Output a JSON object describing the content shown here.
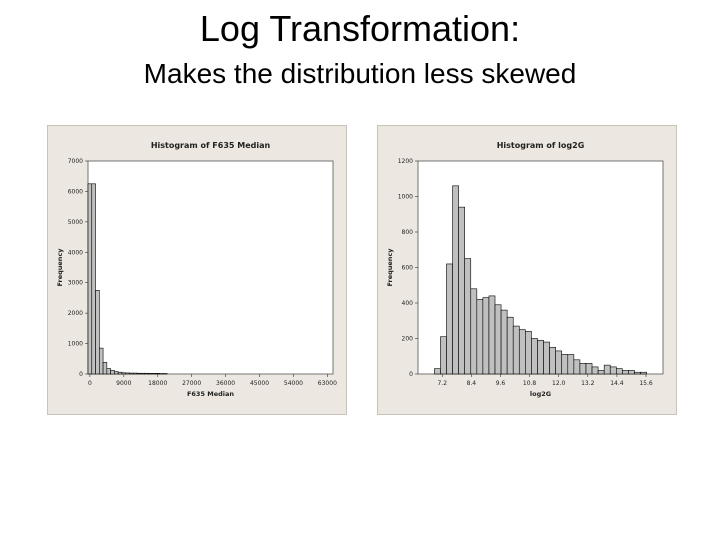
{
  "slide": {
    "title": "Log Transformation:",
    "subtitle": "Makes the distribution less skewed"
  },
  "colors": {
    "panel_bg": "#ece8e1",
    "plot_bg": "#ffffff",
    "bar_fill": "#c0c0c0",
    "bar_stroke": "#000000"
  },
  "chart_data": [
    {
      "type": "bar",
      "title": "Histogram of F635 Median",
      "xlabel": "F635 Median",
      "ylabel": "Frequency",
      "ylim": [
        0,
        7000
      ],
      "xlim": [
        -500,
        64500
      ],
      "yticks": [
        0,
        1000,
        2000,
        3000,
        4000,
        5000,
        6000,
        7000
      ],
      "yticklabels": [
        "0",
        "1000",
        "2000",
        "3000",
        "4000",
        "5000",
        "6000",
        "7000"
      ],
      "xticks": [
        0,
        9000,
        18000,
        27000,
        36000,
        45000,
        54000,
        63000
      ],
      "xticklabels": [
        "0",
        "9000",
        "18000",
        "27000",
        "36000",
        "45000",
        "54000",
        "63000"
      ],
      "bin_width": 1000,
      "x": [
        -500,
        500,
        1500,
        2500,
        3500,
        4500,
        5500,
        6500,
        7500,
        8500,
        9500,
        10500,
        11500,
        12500,
        13500,
        14500,
        15500,
        16500,
        17500,
        18500,
        19500
      ],
      "values": [
        6250,
        6250,
        2750,
        850,
        380,
        180,
        120,
        80,
        60,
        40,
        35,
        30,
        30,
        25,
        25,
        25,
        20,
        20,
        20,
        15,
        15
      ],
      "grid": false
    },
    {
      "type": "bar",
      "title": "Histogram of log2G",
      "xlabel": "log2G",
      "ylabel": "Frequency",
      "ylim": [
        0,
        1200
      ],
      "xlim": [
        6.2,
        16.3
      ],
      "yticks": [
        0,
        200,
        400,
        600,
        800,
        1000,
        1200
      ],
      "yticklabels": [
        "0",
        "200",
        "400",
        "600",
        "800",
        "1000",
        "1200"
      ],
      "xticks": [
        7.2,
        8.4,
        9.6,
        10.8,
        12.0,
        13.2,
        14.4,
        15.6
      ],
      "xticklabels": [
        "7.2",
        "8.4",
        "9.6",
        "10.8",
        "12.0",
        "13.2",
        "14.4",
        "15.6"
      ],
      "bin_width": 0.25,
      "x": [
        6.875,
        7.125,
        7.375,
        7.625,
        7.875,
        8.125,
        8.375,
        8.625,
        8.875,
        9.125,
        9.375,
        9.625,
        9.875,
        10.125,
        10.375,
        10.625,
        10.875,
        11.125,
        11.375,
        11.625,
        11.875,
        12.125,
        12.375,
        12.625,
        12.875,
        13.125,
        13.375,
        13.625,
        13.875,
        14.125,
        14.375,
        14.625,
        14.875,
        15.125,
        15.375
      ],
      "values": [
        30,
        210,
        620,
        1060,
        940,
        650,
        480,
        420,
        430,
        440,
        390,
        360,
        320,
        270,
        250,
        240,
        200,
        190,
        180,
        150,
        130,
        110,
        110,
        80,
        60,
        60,
        40,
        20,
        50,
        40,
        30,
        20,
        20,
        10,
        10
      ],
      "grid": false
    }
  ]
}
